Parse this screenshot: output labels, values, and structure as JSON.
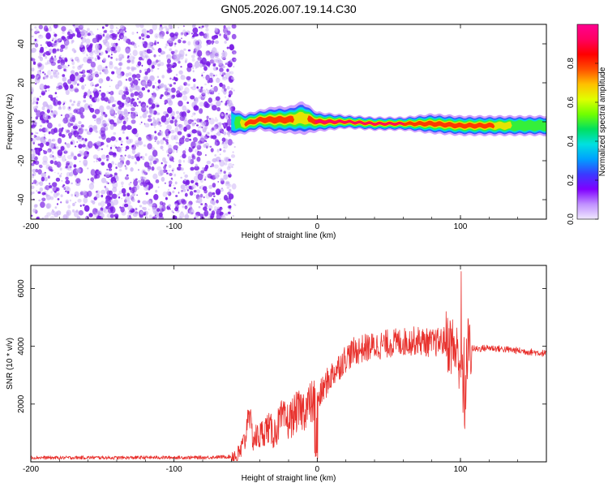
{
  "title": "GN05.2026.007.19.14.C30",
  "colors": {
    "snr_line": "#e8302c",
    "scatter": "#7a1ee6",
    "scatter_light": "#c9aef5",
    "colorbar": [
      "#f0e8ff",
      "#c090ff",
      "#8000ff",
      "#3a3aff",
      "#00a0ff",
      "#00e0e0",
      "#00e060",
      "#70ff00",
      "#e0ff00",
      "#ffc000",
      "#ff5000",
      "#ff0000",
      "#ff0060",
      "#ff0090"
    ]
  },
  "chart_data": [
    {
      "type": "heatmap",
      "name": "spectrogram",
      "xlabel": "Height of straight line (km)",
      "ylabel": "Frequency (Hz)",
      "xlim": [
        -200,
        160
      ],
      "ylim": [
        -50,
        50
      ],
      "x_ticks": [
        -200,
        -100,
        0,
        100
      ],
      "x_tick_labels": [
        "-200",
        "-100",
        "0",
        "100"
      ],
      "y_ticks": [
        -40,
        -20,
        0,
        20,
        40
      ],
      "y_tick_labels": [
        "-40",
        "-20",
        "0",
        "20",
        "40"
      ],
      "noise_region_x": [
        -200,
        -60
      ],
      "signal_band": {
        "x": [
          -60,
          -50,
          -40,
          -30,
          -20,
          -10,
          0,
          20,
          40,
          60,
          80,
          100,
          120,
          140,
          160
        ],
        "center_hz": [
          0,
          -1,
          1,
          1,
          1,
          2,
          0,
          0,
          -1,
          -1,
          -1,
          -2,
          -2,
          -2,
          -2
        ],
        "halfwidth_hz": [
          4,
          3,
          3,
          4,
          4,
          5,
          3,
          2,
          2,
          2,
          3,
          3,
          3,
          3,
          3
        ],
        "peak_amplitude": [
          0.4,
          0.8,
          0.9,
          0.85,
          0.85,
          0.7,
          1.0,
          1.0,
          0.95,
          0.95,
          0.9,
          0.9,
          0.85,
          0.6,
          0.5
        ]
      },
      "colorbar": {
        "label": "Normalized spectral amplitude",
        "range": [
          0,
          1
        ],
        "ticks": [
          0.0,
          0.2,
          0.4,
          0.6,
          0.8
        ],
        "tick_labels": [
          "0.0",
          "0.2",
          "0.4",
          "0.6",
          "0.8"
        ]
      }
    },
    {
      "type": "line",
      "name": "snr",
      "xlabel": "Height of straight line (km)",
      "ylabel": "SNR (10 * v/v)",
      "xlim": [
        -200,
        160
      ],
      "ylim": [
        0,
        6800
      ],
      "x_ticks": [
        -200,
        -100,
        0,
        100
      ],
      "x_tick_labels": [
        "-200",
        "-100",
        "0",
        "100"
      ],
      "y_ticks": [
        2000,
        4000,
        6000
      ],
      "y_tick_labels": [
        "2000",
        "4000",
        "6000"
      ],
      "series": [
        {
          "name": "SNR",
          "x": [
            -200,
            -180,
            -160,
            -140,
            -120,
            -100,
            -80,
            -60,
            -55,
            -50,
            -48,
            -45,
            -40,
            -35,
            -30,
            -25,
            -20,
            -15,
            -10,
            -5,
            0,
            5,
            10,
            15,
            20,
            25,
            30,
            40,
            50,
            60,
            70,
            80,
            90,
            95,
            100,
            103,
            105,
            110,
            120,
            130,
            140,
            150,
            160
          ],
          "y": [
            150,
            140,
            150,
            140,
            150,
            150,
            150,
            180,
            200,
            800,
            1900,
            800,
            900,
            1200,
            1000,
            1500,
            1400,
            1700,
            1800,
            2000,
            2100,
            2600,
            3000,
            3300,
            3600,
            3800,
            3900,
            4000,
            4100,
            4150,
            4200,
            4100,
            4200,
            4000,
            3500,
            2000,
            4000,
            3900,
            3950,
            3900,
            3850,
            3800,
            3750
          ]
        }
      ]
    }
  ]
}
